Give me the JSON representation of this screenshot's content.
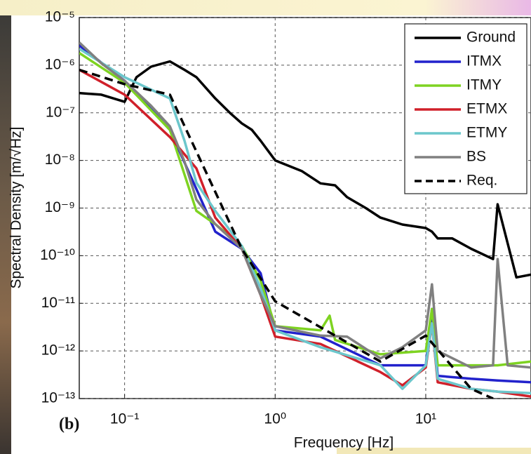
{
  "chart_data": {
    "type": "line",
    "xlabel": "Frequency [Hz]",
    "ylabel": "Spectral Density [m/√Hz]",
    "annotation": "(b)",
    "xscale": "log",
    "yscale": "log",
    "xlim": [
      0.05,
      50
    ],
    "ylim": [
      1e-13,
      1e-05
    ],
    "xticks": [
      {
        "value": 0.1,
        "label": "10⁻¹"
      },
      {
        "value": 1,
        "label": "10⁰"
      },
      {
        "value": 10,
        "label": "10¹"
      }
    ],
    "yticks": [
      {
        "value": 1e-13,
        "label": "10⁻¹³"
      },
      {
        "value": 1e-12,
        "label": "10⁻¹²"
      },
      {
        "value": 1e-11,
        "label": "10⁻¹¹"
      },
      {
        "value": 1e-10,
        "label": "10⁻¹⁰"
      },
      {
        "value": 1e-09,
        "label": "10⁻⁹"
      },
      {
        "value": 1e-08,
        "label": "10⁻⁸"
      },
      {
        "value": 1e-07,
        "label": "10⁻⁷"
      },
      {
        "value": 1e-06,
        "label": "10⁻⁶"
      },
      {
        "value": 1e-05,
        "label": "10⁻⁵"
      }
    ],
    "grid": true,
    "legend": "upper right",
    "series": [
      {
        "name": "Ground",
        "color": "#000000",
        "dashed": false,
        "x": [
          0.05,
          0.07,
          0.1,
          0.12,
          0.15,
          0.2,
          0.25,
          0.3,
          0.4,
          0.5,
          0.6,
          0.7,
          0.8,
          1,
          1.5,
          2,
          2.5,
          3,
          4,
          5,
          7,
          10,
          11,
          12,
          15,
          20,
          28,
          30,
          40,
          50
        ],
        "values": [
          2.6e-07,
          2.4e-07,
          1.7e-07,
          5.6e-07,
          9.3e-07,
          1.2e-06,
          8e-07,
          5.6e-07,
          2e-07,
          1e-07,
          6e-08,
          4.4e-08,
          2.6e-08,
          1e-08,
          6e-09,
          3.3e-09,
          3e-09,
          1.7e-09,
          1e-09,
          6.3e-10,
          4.5e-10,
          3.8e-10,
          3.2e-10,
          2.3e-10,
          2.3e-10,
          1.4e-10,
          8.5e-11,
          1.2e-09,
          3.5e-11,
          4e-11
        ]
      },
      {
        "name": "ITMX",
        "color": "#2222cc",
        "dashed": false,
        "x": [
          0.05,
          0.1,
          0.2,
          0.3,
          0.4,
          0.6,
          0.8,
          1,
          2,
          5,
          10,
          11,
          12,
          20,
          30,
          50
        ],
        "values": [
          2.6e-06,
          4.7e-07,
          4.4e-08,
          2.5e-09,
          3.2e-10,
          1.4e-10,
          4.3e-11,
          2.7e-12,
          2e-12,
          5e-13,
          5e-13,
          7.6e-12,
          3e-13,
          2.6e-13,
          2.4e-13,
          2.2e-13
        ]
      },
      {
        "name": "ITMY",
        "color": "#7ed321",
        "dashed": false,
        "x": [
          0.05,
          0.1,
          0.2,
          0.3,
          0.4,
          0.6,
          0.8,
          1,
          2,
          2.3,
          2.5,
          5,
          10,
          11,
          12,
          20,
          30,
          50
        ],
        "values": [
          1.8e-06,
          4.3e-07,
          4.4e-08,
          8.7e-10,
          4.6e-10,
          1.6e-10,
          3e-11,
          3.3e-12,
          2.7e-12,
          5.5e-12,
          1.7e-12,
          8.5e-13,
          1e-12,
          7.6e-12,
          5e-13,
          5e-13,
          5e-13,
          6e-13
        ]
      },
      {
        "name": "ETMX",
        "color": "#d0202a",
        "dashed": false,
        "x": [
          0.05,
          0.1,
          0.2,
          0.3,
          0.4,
          0.6,
          0.8,
          1,
          2,
          5,
          7,
          10,
          11,
          12,
          20,
          30,
          50
        ],
        "values": [
          8e-07,
          2.4e-07,
          3.1e-08,
          6.8e-09,
          6.3e-10,
          1.4e-10,
          1.5e-11,
          2e-12,
          1.4e-12,
          3.6e-13,
          1.9e-13,
          4.5e-13,
          3.8e-12,
          2.2e-13,
          1.6e-13,
          1.4e-13,
          1.1e-13
        ]
      },
      {
        "name": "ETMY",
        "color": "#6cc7cc",
        "dashed": false,
        "x": [
          0.05,
          0.1,
          0.2,
          0.25,
          0.3,
          0.4,
          0.6,
          0.8,
          1,
          2,
          5,
          7,
          10,
          11,
          12,
          20,
          30,
          50
        ],
        "values": [
          2.2e-06,
          5.6e-07,
          2e-07,
          2.6e-08,
          3.4e-09,
          8.7e-10,
          1.6e-10,
          2.1e-11,
          2.7e-12,
          1.2e-12,
          5e-13,
          1.6e-13,
          5e-13,
          3.8e-12,
          2.6e-13,
          1.6e-13,
          1.4e-13,
          1.3e-13
        ]
      },
      {
        "name": "BS",
        "color": "#808080",
        "dashed": false,
        "x": [
          0.05,
          0.07,
          0.1,
          0.15,
          0.2,
          0.25,
          0.3,
          0.4,
          0.6,
          0.8,
          1,
          2,
          3,
          5,
          7,
          10,
          11,
          12,
          20,
          28,
          30,
          35,
          50
        ],
        "values": [
          3e-06,
          1.1e-06,
          4.7e-07,
          1.4e-07,
          5.2e-08,
          9.5e-09,
          1.5e-09,
          4.6e-10,
          1.4e-10,
          1.5e-11,
          3.3e-12,
          2.1e-12,
          2e-12,
          7e-13,
          1.2e-12,
          2.7e-12,
          2.5e-11,
          1e-12,
          4.5e-13,
          5e-13,
          8.5e-11,
          5e-13,
          4.5e-13
        ]
      },
      {
        "name": "Req.",
        "color": "#000000",
        "dashed": true,
        "x": [
          0.05,
          0.1,
          0.2,
          0.6,
          1,
          5,
          10,
          20,
          28
        ],
        "values": [
          8e-07,
          4e-07,
          2.4e-07,
          1.4e-10,
          1.1e-11,
          6e-13,
          2.1e-12,
          1.6e-13,
          1e-13
        ]
      }
    ]
  }
}
